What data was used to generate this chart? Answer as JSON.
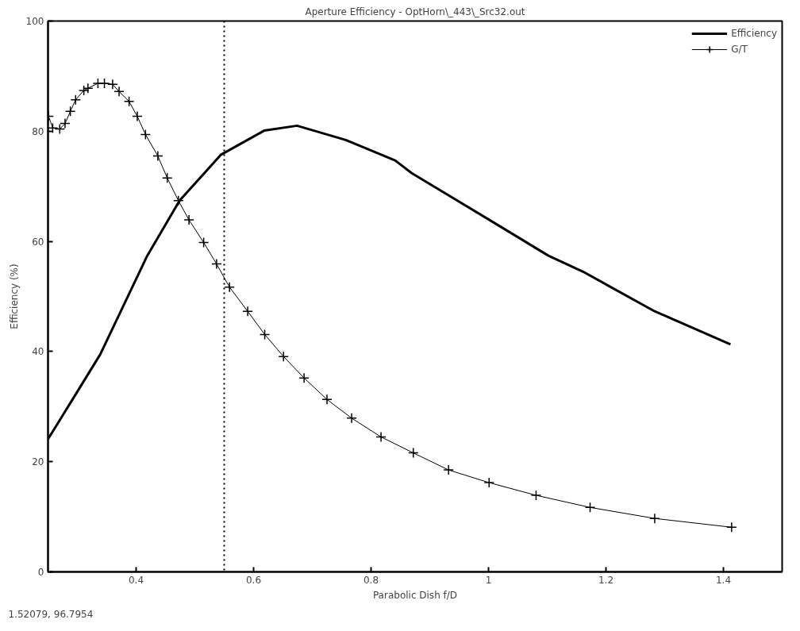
{
  "chart_data": {
    "type": "line",
    "title": "Aperture Efficiency - OptHorn\\_443\\_Src32.out",
    "xlabel": "Parabolic Dish f/D",
    "ylabel": "Efficiency (%)",
    "xlim": [
      0.25,
      1.5
    ],
    "ylim": [
      0,
      100
    ],
    "xticks": [
      0.4,
      0.6,
      0.8,
      1,
      1.2,
      1.4
    ],
    "yticks": [
      0,
      20,
      40,
      60,
      80,
      100
    ],
    "grid": false,
    "legend": "top right",
    "series": [
      {
        "name": "Efficiency",
        "color": "#000000",
        "marker": "none",
        "x": [
          0.25,
          0.29,
          0.339,
          0.419,
          0.474,
          0.544,
          0.618,
          0.674,
          0.757,
          0.841,
          0.869,
          1.0,
          1.102,
          1.161,
          1.283,
          1.412
        ],
        "values": [
          24.1,
          31,
          39.5,
          57.4,
          67.4,
          75.7,
          80.1,
          81.0,
          78.4,
          74.7,
          72.4,
          64,
          57.4,
          54.5,
          47.3,
          41.3
        ]
      },
      {
        "name": "G/T",
        "color": "#000000",
        "marker": "cross",
        "x": [
          0.251,
          0.258,
          0.27,
          0.279,
          0.288,
          0.297,
          0.311,
          0.318,
          0.335,
          0.346,
          0.36,
          0.371,
          0.388,
          0.402,
          0.416,
          0.437,
          0.453,
          0.472,
          0.49,
          0.515,
          0.537,
          0.559,
          0.59,
          0.619,
          0.651,
          0.686,
          0.725,
          0.767,
          0.817,
          0.872,
          0.932,
          1.001,
          1.081,
          1.173,
          1.283,
          1.414
        ],
        "values": [
          82.7,
          80.6,
          80.4,
          81.4,
          83.6,
          85.7,
          87.4,
          87.8,
          88.7,
          88.7,
          88.5,
          87.2,
          85.4,
          82.7,
          79.4,
          75.5,
          71.5,
          67.4,
          63.9,
          59.8,
          55.9,
          51.7,
          47.3,
          43.1,
          39.1,
          35.2,
          31.3,
          27.9,
          24.5,
          21.6,
          18.5,
          16.2,
          13.9,
          11.7,
          9.7,
          8.1
        ]
      }
    ],
    "ref_lines": [
      {
        "axis": "x",
        "value": 0.55,
        "line_style": "dotted"
      }
    ],
    "annotations": [
      "1.52079,  96.7954"
    ]
  }
}
